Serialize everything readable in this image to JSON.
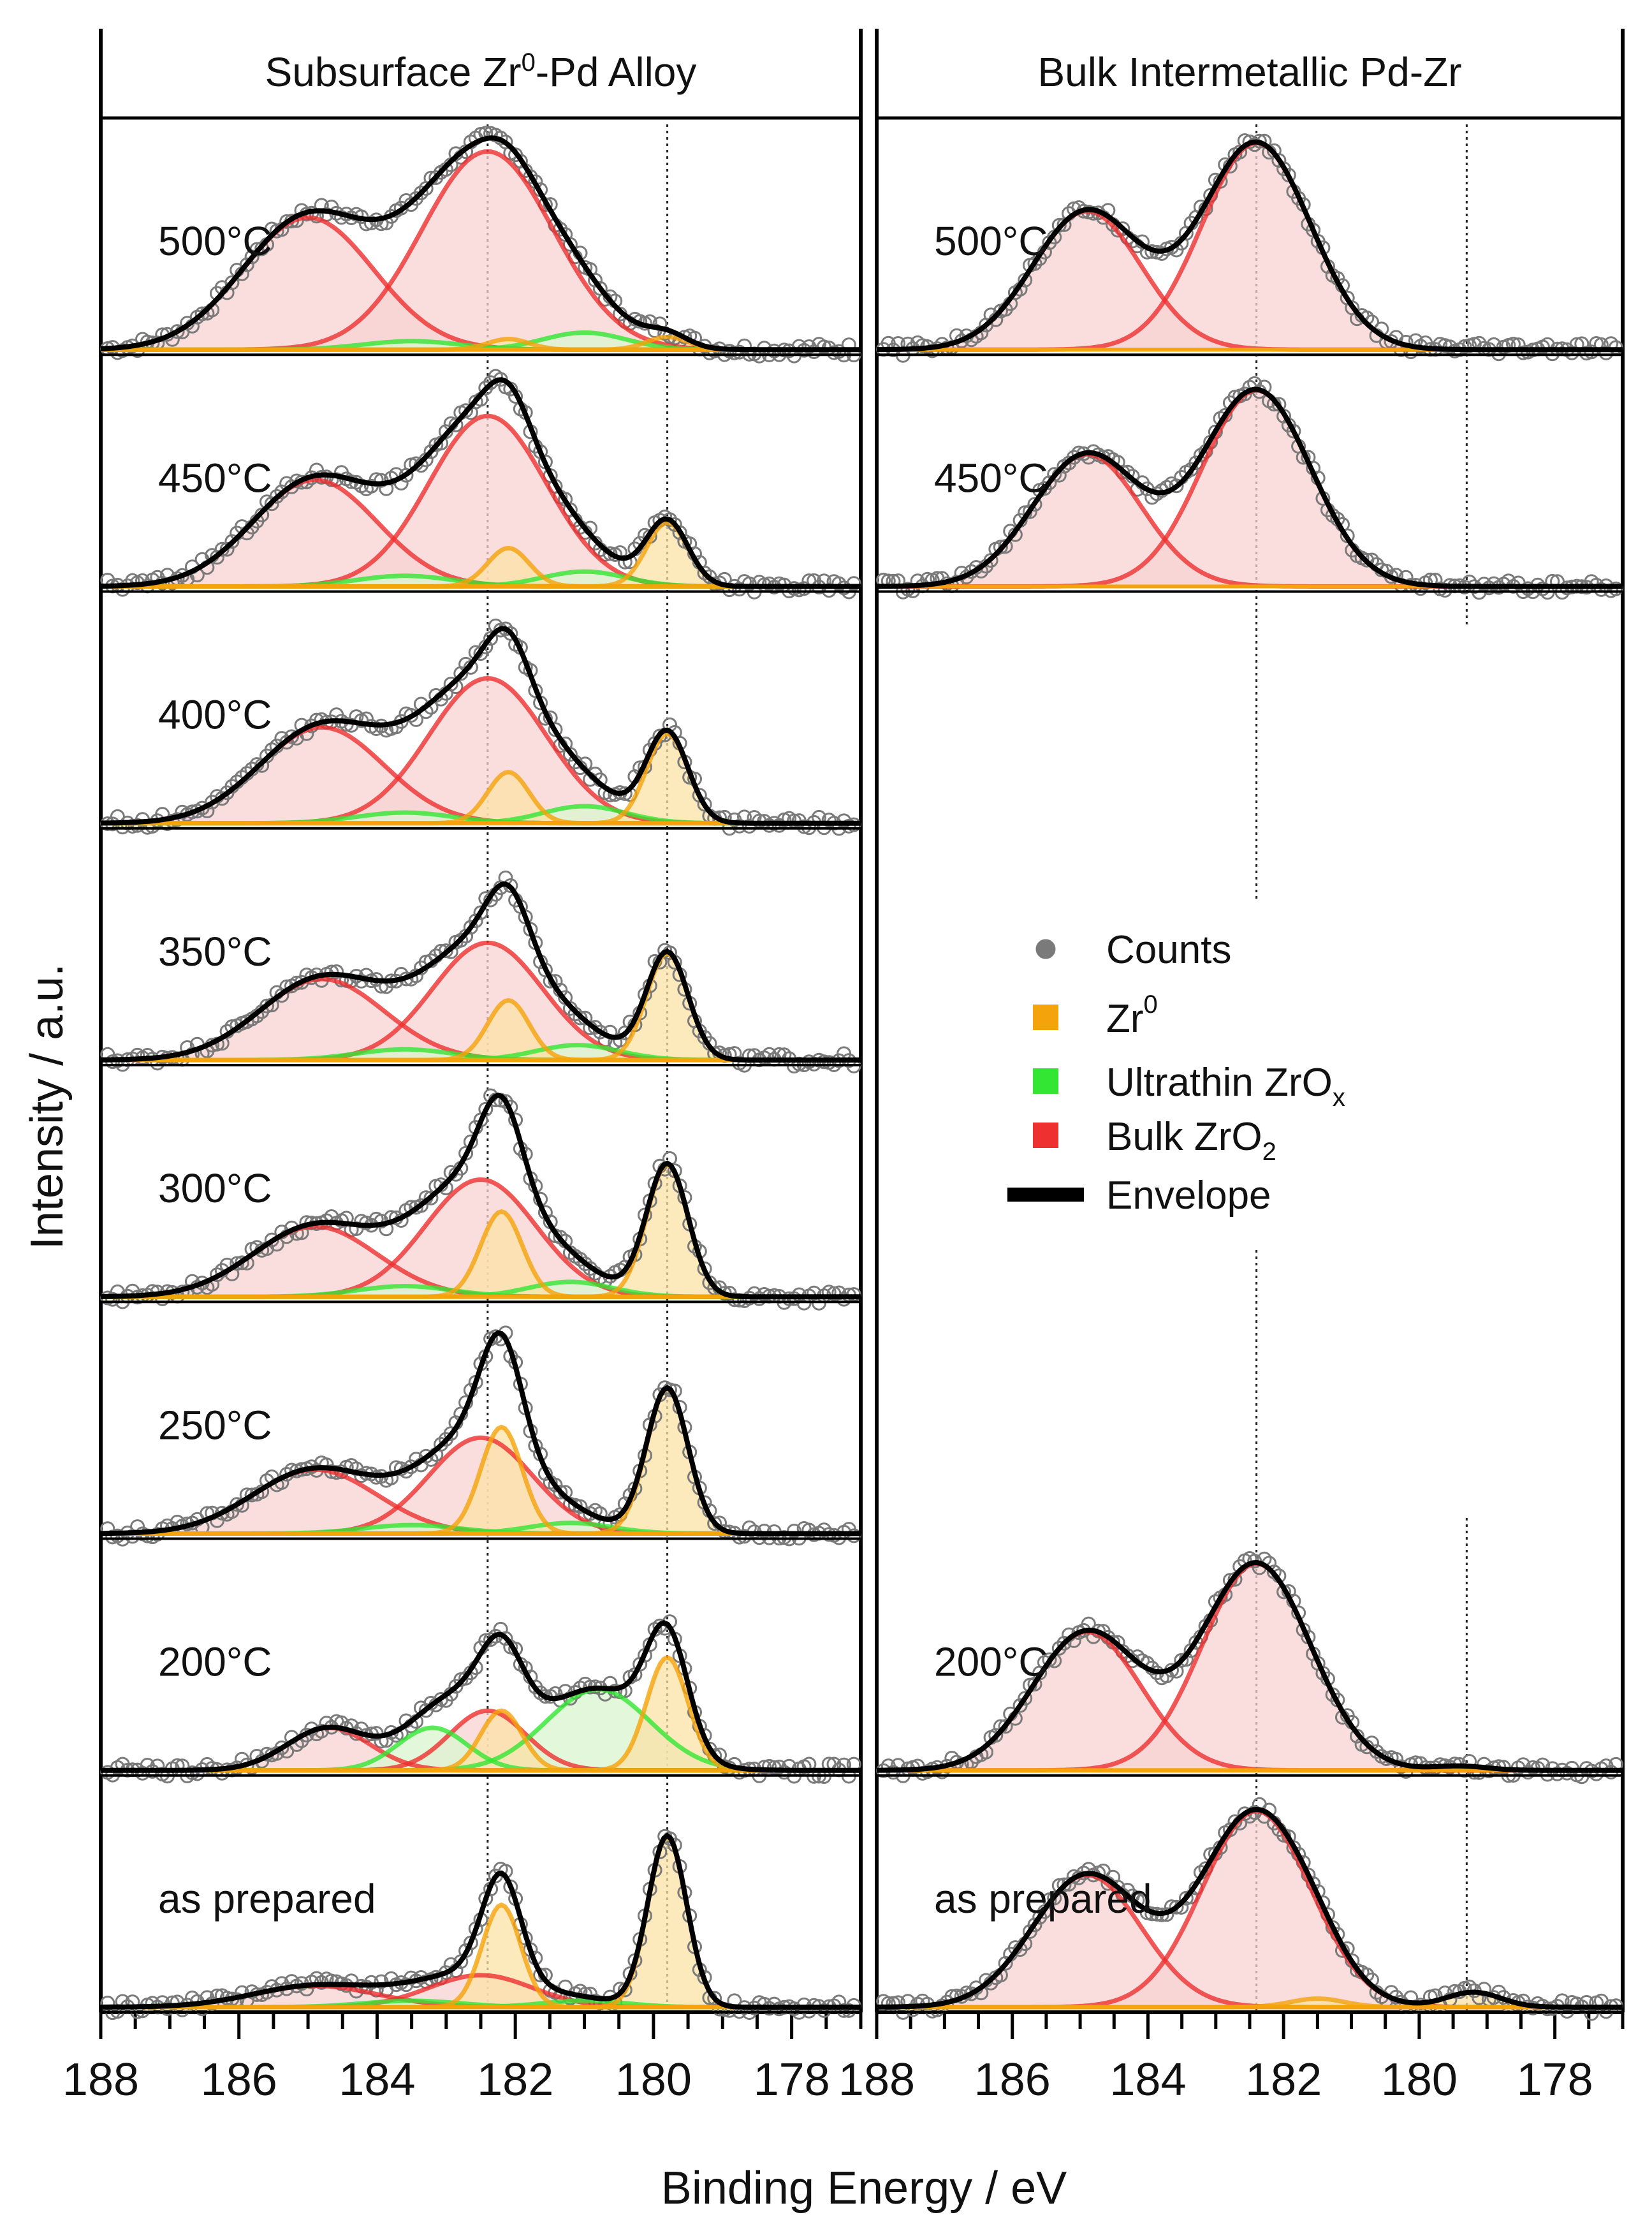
{
  "chart_data": {
    "type": "line",
    "description_kind": "stacked XPS spectra, Zr 3d region",
    "xlabel": "Binding Energy / eV",
    "ylabel": "Intensity / a.u.",
    "x_reversed": true,
    "xlim": [
      188,
      177
    ],
    "xticks": [
      "188",
      "186",
      "184",
      "182",
      "180",
      "178"
    ],
    "reference_lines_eV": [
      182.4,
      179.8
    ],
    "component_colors": {
      "counts": "#7a7a7a",
      "zr0": "#f5a30b",
      "ultrathin_zrox": "#33e633",
      "bulk_zro2": "#ee3030",
      "envelope": "#000000"
    },
    "fill_colors": {
      "zr0": "#fbe2a6",
      "ultrathin_zrox": "#d9f5cf",
      "bulk_zro2": "#f8d3d3"
    },
    "legend": {
      "counts": "Counts",
      "zr0_base": "Zr",
      "zr0_sup": "0",
      "ultrathin_base": "Ultrathin ZrO",
      "ultrathin_sub": "x",
      "bulk_base": "Bulk ZrO",
      "bulk_sub": "2",
      "envelope": "Envelope"
    },
    "panels": [
      {
        "id": "left",
        "title_base": "Subsurface Zr",
        "title_sup": "0",
        "title_rest": "-Pd Alloy",
        "spectra": [
          {
            "label": "500°C",
            "components": {
              "bulk": [
                {
                  "c": 185.0,
                  "h": 0.62,
                  "w": 0.95
                },
                {
                  "c": 182.4,
                  "h": 0.93,
                  "w": 0.95
                }
              ],
              "zr0": [
                {
                  "c": 182.1,
                  "h": 0.05,
                  "w": 0.3
                },
                {
                  "c": 179.8,
                  "h": 0.06,
                  "w": 0.3
                }
              ],
              "ultra": [
                {
                  "c": 183.5,
                  "h": 0.04,
                  "w": 0.7
                },
                {
                  "c": 181.0,
                  "h": 0.08,
                  "w": 0.6
                }
              ]
            }
          },
          {
            "label": "450°C",
            "components": {
              "bulk": [
                {
                  "c": 184.9,
                  "h": 0.5,
                  "w": 0.9
                },
                {
                  "c": 182.4,
                  "h": 0.8,
                  "w": 0.85
                }
              ],
              "zr0": [
                {
                  "c": 182.1,
                  "h": 0.18,
                  "w": 0.3
                },
                {
                  "c": 179.8,
                  "h": 0.3,
                  "w": 0.3
                }
              ],
              "ultra": [
                {
                  "c": 183.6,
                  "h": 0.05,
                  "w": 0.7
                },
                {
                  "c": 181.0,
                  "h": 0.07,
                  "w": 0.6
                }
              ]
            }
          },
          {
            "label": "400°C",
            "components": {
              "bulk": [
                {
                  "c": 184.8,
                  "h": 0.45,
                  "w": 0.9
                },
                {
                  "c": 182.4,
                  "h": 0.68,
                  "w": 0.85
                }
              ],
              "zr0": [
                {
                  "c": 182.1,
                  "h": 0.24,
                  "w": 0.3
                },
                {
                  "c": 179.8,
                  "h": 0.42,
                  "w": 0.3
                }
              ],
              "ultra": [
                {
                  "c": 183.6,
                  "h": 0.05,
                  "w": 0.7
                },
                {
                  "c": 181.0,
                  "h": 0.08,
                  "w": 0.6
                }
              ]
            }
          },
          {
            "label": "350°C",
            "components": {
              "bulk": [
                {
                  "c": 184.8,
                  "h": 0.38,
                  "w": 0.9
                },
                {
                  "c": 182.4,
                  "h": 0.55,
                  "w": 0.8
                }
              ],
              "zr0": [
                {
                  "c": 182.1,
                  "h": 0.28,
                  "w": 0.3
                },
                {
                  "c": 179.8,
                  "h": 0.5,
                  "w": 0.3
                }
              ],
              "ultra": [
                {
                  "c": 183.6,
                  "h": 0.05,
                  "w": 0.7
                },
                {
                  "c": 181.1,
                  "h": 0.07,
                  "w": 0.6
                }
              ]
            }
          },
          {
            "label": "300°C",
            "components": {
              "bulk": [
                {
                  "c": 184.9,
                  "h": 0.33,
                  "w": 0.9
                },
                {
                  "c": 182.5,
                  "h": 0.55,
                  "w": 0.8
                }
              ],
              "zr0": [
                {
                  "c": 182.2,
                  "h": 0.4,
                  "w": 0.3
                },
                {
                  "c": 179.8,
                  "h": 0.62,
                  "w": 0.3
                }
              ],
              "ultra": [
                {
                  "c": 183.6,
                  "h": 0.05,
                  "w": 0.7
                },
                {
                  "c": 181.2,
                  "h": 0.07,
                  "w": 0.6
                }
              ]
            }
          },
          {
            "label": "250°C",
            "components": {
              "bulk": [
                {
                  "c": 184.9,
                  "h": 0.3,
                  "w": 0.9
                },
                {
                  "c": 182.5,
                  "h": 0.45,
                  "w": 0.75
                }
              ],
              "zr0": [
                {
                  "c": 182.2,
                  "h": 0.5,
                  "w": 0.3
                },
                {
                  "c": 179.8,
                  "h": 0.68,
                  "w": 0.3
                }
              ],
              "ultra": [
                {
                  "c": 183.5,
                  "h": 0.04,
                  "w": 0.7
                },
                {
                  "c": 181.2,
                  "h": 0.05,
                  "w": 0.6
                }
              ]
            }
          },
          {
            "label": "200°C",
            "components": {
              "bulk": [
                {
                  "c": 184.7,
                  "h": 0.2,
                  "w": 0.6
                },
                {
                  "c": 182.4,
                  "h": 0.28,
                  "w": 0.55
                }
              ],
              "zr0": [
                {
                  "c": 182.2,
                  "h": 0.28,
                  "w": 0.3
                },
                {
                  "c": 179.8,
                  "h": 0.53,
                  "w": 0.3
                }
              ],
              "ultra": [
                {
                  "c": 183.2,
                  "h": 0.2,
                  "w": 0.5
                },
                {
                  "c": 180.8,
                  "h": 0.38,
                  "w": 0.75
                }
              ]
            }
          },
          {
            "label": "as prepared",
            "components": {
              "bulk": [
                {
                  "c": 184.9,
                  "h": 0.1,
                  "w": 0.9
                },
                {
                  "c": 182.5,
                  "h": 0.15,
                  "w": 0.75
                }
              ],
              "zr0": [
                {
                  "c": 182.2,
                  "h": 0.48,
                  "w": 0.28
                },
                {
                  "c": 179.8,
                  "h": 0.8,
                  "w": 0.28
                }
              ],
              "ultra": [
                {
                  "c": 183.5,
                  "h": 0.03,
                  "w": 0.7
                },
                {
                  "c": 181.0,
                  "h": 0.03,
                  "w": 0.6
                }
              ]
            }
          }
        ]
      },
      {
        "id": "right",
        "title": "Bulk Intermetallic Pd-Zr",
        "spectra": [
          {
            "label": "500°C",
            "components": {
              "bulk": [
                {
                  "c": 184.9,
                  "h": 0.65,
                  "w": 0.8
                },
                {
                  "c": 182.4,
                  "h": 0.97,
                  "w": 0.8
                }
              ],
              "zr0": [],
              "ultra": []
            }
          },
          {
            "label": "450°C",
            "components": {
              "bulk": [
                {
                  "c": 184.9,
                  "h": 0.62,
                  "w": 0.8
                },
                {
                  "c": 182.4,
                  "h": 0.92,
                  "w": 0.8
                }
              ],
              "zr0": [],
              "ultra": []
            }
          },
          {
            "label": "200°C",
            "components": {
              "bulk": [
                {
                  "c": 184.9,
                  "h": 0.65,
                  "w": 0.8
                },
                {
                  "c": 182.4,
                  "h": 0.97,
                  "w": 0.8
                }
              ],
              "zr0": [
                {
                  "c": 179.4,
                  "h": 0.02,
                  "w": 0.4
                }
              ],
              "ultra": []
            }
          },
          {
            "label": "as prepared",
            "components": {
              "bulk": [
                {
                  "c": 184.9,
                  "h": 0.62,
                  "w": 0.8
                },
                {
                  "c": 182.4,
                  "h": 0.92,
                  "w": 0.8
                }
              ],
              "zr0": [
                {
                  "c": 181.5,
                  "h": 0.04,
                  "w": 0.4
                },
                {
                  "c": 179.2,
                  "h": 0.07,
                  "w": 0.4
                }
              ],
              "ultra": []
            }
          }
        ]
      }
    ]
  }
}
